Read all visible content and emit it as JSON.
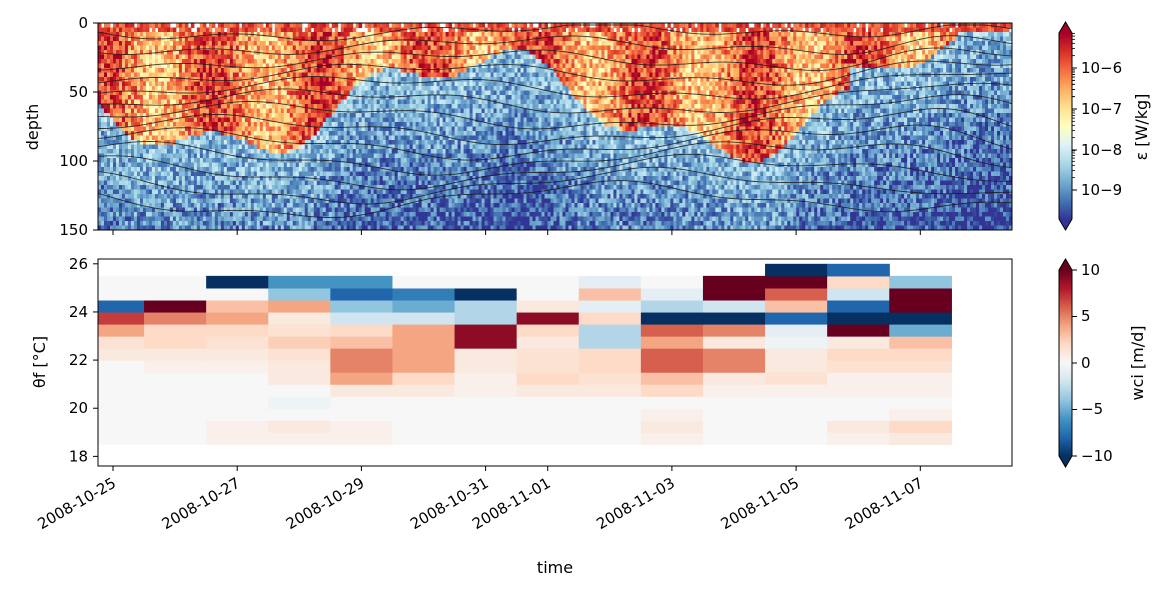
{
  "chart_data": [
    {
      "type": "heatmap",
      "ylabel": "depth",
      "ylim": [
        150,
        0
      ],
      "yticks": [
        "0",
        "50",
        "100",
        "150"
      ],
      "colorbar": {
        "label": "ε [W/kg]",
        "scale": "log",
        "range": [
          1e-10,
          1e-05
        ],
        "ticks": [
          "10−6",
          "10−7",
          "10−8",
          "10−9"
        ],
        "colormap": "RdYlBu_r"
      },
      "overlay": "black contour lines"
    },
    {
      "type": "heatmap",
      "ylabel": "θf [°C]",
      "ylim": [
        17.6,
        26.2
      ],
      "yticks": [
        "18",
        "20",
        "22",
        "24",
        "26"
      ],
      "xlabel": "time",
      "xticks": [
        "2008-10-25",
        "2008-10-27",
        "2008-10-29",
        "2008-10-31",
        "2008-11-01",
        "2008-11-03",
        "2008-11-05",
        "2008-11-07"
      ],
      "colorbar": {
        "label": "wci [m/d]",
        "range": [
          -10,
          10
        ],
        "ticks": [
          "10",
          "5",
          "0",
          "−5",
          "−10"
        ],
        "colormap": "RdBu_r"
      },
      "day_offsets": [
        0.0,
        1.0,
        2.0,
        3.0,
        4.0,
        5.0,
        6.0,
        7.0,
        8.0,
        9.0,
        10.0,
        11.0,
        12.0,
        13.0
      ],
      "temperature_bins": [
        18.5,
        19.0,
        19.5,
        20.0,
        20.5,
        21.0,
        21.5,
        22.0,
        22.5,
        23.0,
        23.5,
        24.0,
        24.5,
        25.0,
        25.5
      ],
      "values": [
        [
          0,
          0,
          0.5,
          0.5,
          0.5,
          0,
          0,
          0,
          0,
          0.5,
          0,
          0,
          0.5,
          1
        ],
        [
          0,
          0,
          0.5,
          1,
          0.5,
          0,
          0,
          0,
          0,
          1,
          0,
          0,
          1,
          2
        ],
        [
          0,
          0,
          0,
          0,
          0,
          0,
          0,
          0,
          0,
          0.5,
          0,
          0,
          0,
          0.5
        ],
        [
          0,
          0,
          0,
          -0.5,
          0,
          0,
          0,
          0,
          0,
          0,
          0,
          0,
          0,
          0
        ],
        [
          0,
          0,
          0,
          0,
          1,
          1,
          0.5,
          1,
          1,
          2,
          0.5,
          0.5,
          0.5,
          0.5
        ],
        [
          0,
          0,
          0,
          1,
          4,
          2,
          0.5,
          2,
          1.5,
          3,
          1,
          1.5,
          0.5,
          0.5
        ],
        [
          0,
          0.5,
          0.5,
          1,
          5,
          4,
          1,
          1.5,
          2,
          6,
          5,
          1,
          1.5,
          1.5
        ],
        [
          1,
          1,
          1,
          1.5,
          5,
          4,
          1,
          1.5,
          2,
          6,
          5,
          1,
          2,
          2
        ],
        [
          1.5,
          2,
          1.5,
          2.5,
          3,
          4,
          9,
          1,
          -3,
          4,
          1,
          -0.5,
          1,
          3
        ],
        [
          4,
          2,
          2,
          1.5,
          2,
          4,
          9,
          2,
          -3,
          6,
          5,
          -1,
          10,
          -5
        ],
        [
          7,
          5,
          4,
          1,
          -2,
          -2,
          -3,
          9,
          2,
          -10,
          -10,
          -8,
          -10,
          -10
        ],
        [
          -8,
          10,
          3,
          4,
          -4,
          -5,
          -3,
          1,
          -1,
          -3,
          -2,
          3,
          -8,
          10
        ],
        [
          0,
          0,
          0,
          -4,
          -8,
          -7,
          -10,
          0,
          3,
          -1,
          10,
          6,
          -2,
          10
        ],
        [
          0,
          0,
          -10,
          -6,
          -6,
          0,
          0,
          0,
          -1,
          0,
          10,
          10,
          2,
          -4
        ],
        [
          0,
          0,
          0,
          0,
          0,
          0,
          0,
          0,
          0,
          0,
          0,
          -10,
          -8,
          0
        ]
      ]
    }
  ]
}
